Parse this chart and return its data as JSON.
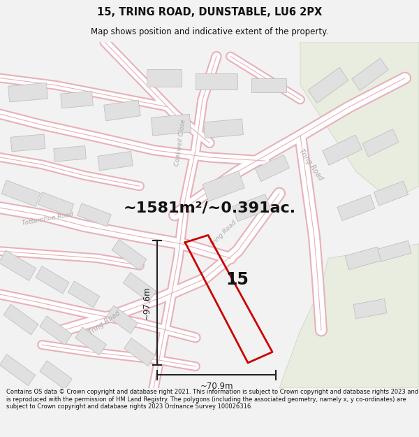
{
  "title_line1": "15, TRING ROAD, DUNSTABLE, LU6 2PX",
  "title_line2": "Map shows position and indicative extent of the property.",
  "area_text": "~1581m²/~0.391ac.",
  "label_15": "15",
  "dim_height": "~97.6m",
  "dim_width": "~70.9m",
  "footer_text": "Contains OS data © Crown copyright and database right 2021. This information is subject to Crown copyright and database rights 2023 and is reproduced with the permission of HM Land Registry. The polygons (including the associated geometry, namely x, y co-ordinates) are subject to Crown copyright and database rights 2023 Ordnance Survey 100026316.",
  "bg_color": "#f2f2f2",
  "map_bg": "#ffffff",
  "road_outline_color": "#e8b0b8",
  "road_fill_color": "#ffffff",
  "building_fill": "#e0e0e0",
  "building_edge": "#c0c0c0",
  "green_fill": "#e8ede0",
  "green_edge": "#c8d0c0",
  "property_color": "#cc0000",
  "dim_line_color": "#222222",
  "title_color": "#111111",
  "footer_color": "#111111",
  "area_color": "#111111",
  "road_label_color": "#aaaaaa"
}
